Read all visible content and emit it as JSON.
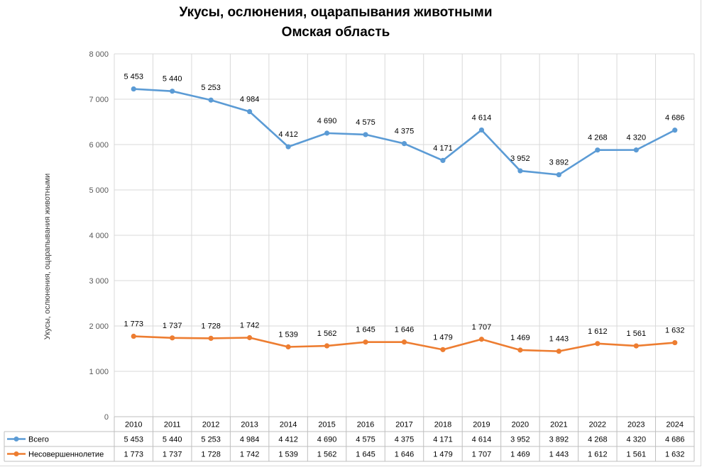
{
  "chart_data": {
    "type": "line",
    "title": "Укусы, ослюнения, оцарапывания животными",
    "subtitle": "Омская область",
    "ylabel": "Укусы, ослюнения, оцарапывания животными",
    "ylim": [
      0,
      8000
    ],
    "yticks": [
      "0",
      "1 000",
      "2 000",
      "3 000",
      "4 000",
      "5 000",
      "6 000",
      "7 000",
      "8 000"
    ],
    "grid": true,
    "legend_placement": "bottom data table",
    "categories": [
      "2010",
      "2011",
      "2012",
      "2013",
      "2014",
      "2015",
      "2016",
      "2017",
      "2018",
      "2019",
      "2020",
      "2021",
      "2022",
      "2023",
      "2024"
    ],
    "series": [
      {
        "name": "Всего",
        "color": "#5b9bd5",
        "plotted": [
          7226,
          7177,
          6981,
          6726,
          5951,
          6252,
          6220,
          6021,
          5650,
          6321,
          5421,
          5335,
          5880,
          5881,
          6318
        ],
        "labels": [
          "5 453",
          "5 440",
          "5 253",
          "4 984",
          "4 412",
          "4 690",
          "4 575",
          "4 375",
          "4 171",
          "4 614",
          "3 952",
          "3 892",
          "4 268",
          "4 320",
          "4 686"
        ]
      },
      {
        "name": "Несовершеннолетие",
        "color": "#ed7d31",
        "plotted": [
          1773,
          1737,
          1728,
          1742,
          1539,
          1562,
          1645,
          1646,
          1479,
          1707,
          1469,
          1443,
          1612,
          1561,
          1632
        ],
        "labels": [
          "1 773",
          "1 737",
          "1 728",
          "1 742",
          "1 539",
          "1 562",
          "1 645",
          "1 646",
          "1 479",
          "1 707",
          "1 469",
          "1 443",
          "1 612",
          "1 561",
          "1 632"
        ]
      }
    ]
  }
}
